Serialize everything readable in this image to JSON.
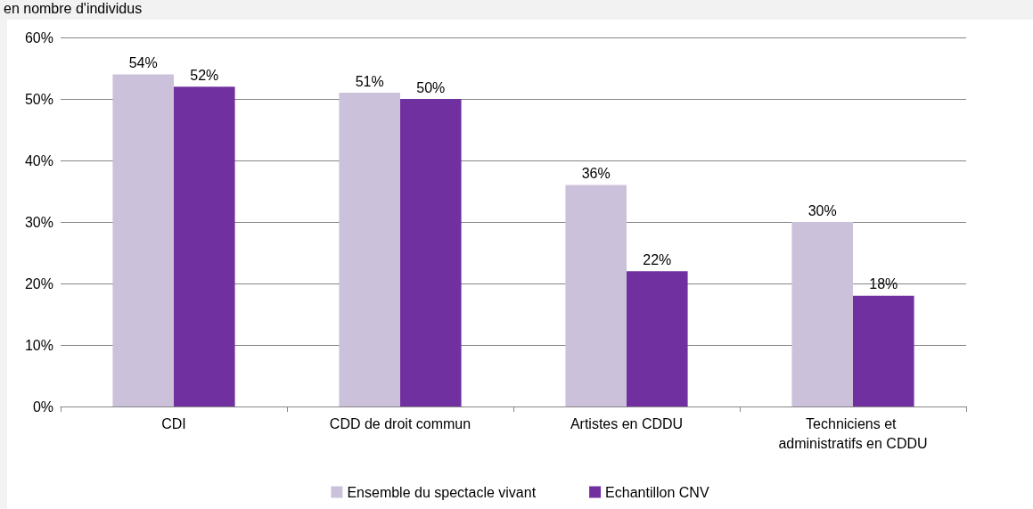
{
  "chart_data": {
    "type": "bar",
    "subtitle": "en nombre d'individus",
    "categories": [
      "CDI",
      "CDD de droit commun",
      "Artistes en CDDU",
      "Techniciens et administratifs en CDDU"
    ],
    "series": [
      {
        "name": "Ensemble du spectacle vivant",
        "color": "#ccc1da",
        "values": [
          54,
          51,
          36,
          30
        ],
        "value_labels": [
          "54%",
          "51%",
          "36%",
          "30%"
        ]
      },
      {
        "name": "Echantillon CNV",
        "color": "#7030a0",
        "values": [
          52,
          50,
          22,
          18
        ],
        "value_labels": [
          "52%",
          "50%",
          "22%",
          "18%"
        ]
      }
    ],
    "ylim": [
      0,
      60
    ],
    "yticks": [
      {
        "value": 0,
        "label": "0%"
      },
      {
        "value": 10,
        "label": "10%"
      },
      {
        "value": 20,
        "label": "20%"
      },
      {
        "value": 30,
        "label": "30%"
      },
      {
        "value": 40,
        "label": "40%"
      },
      {
        "value": 50,
        "label": "50%"
      },
      {
        "value": 60,
        "label": "60%"
      }
    ],
    "grid": "y",
    "legend": "bottom"
  }
}
